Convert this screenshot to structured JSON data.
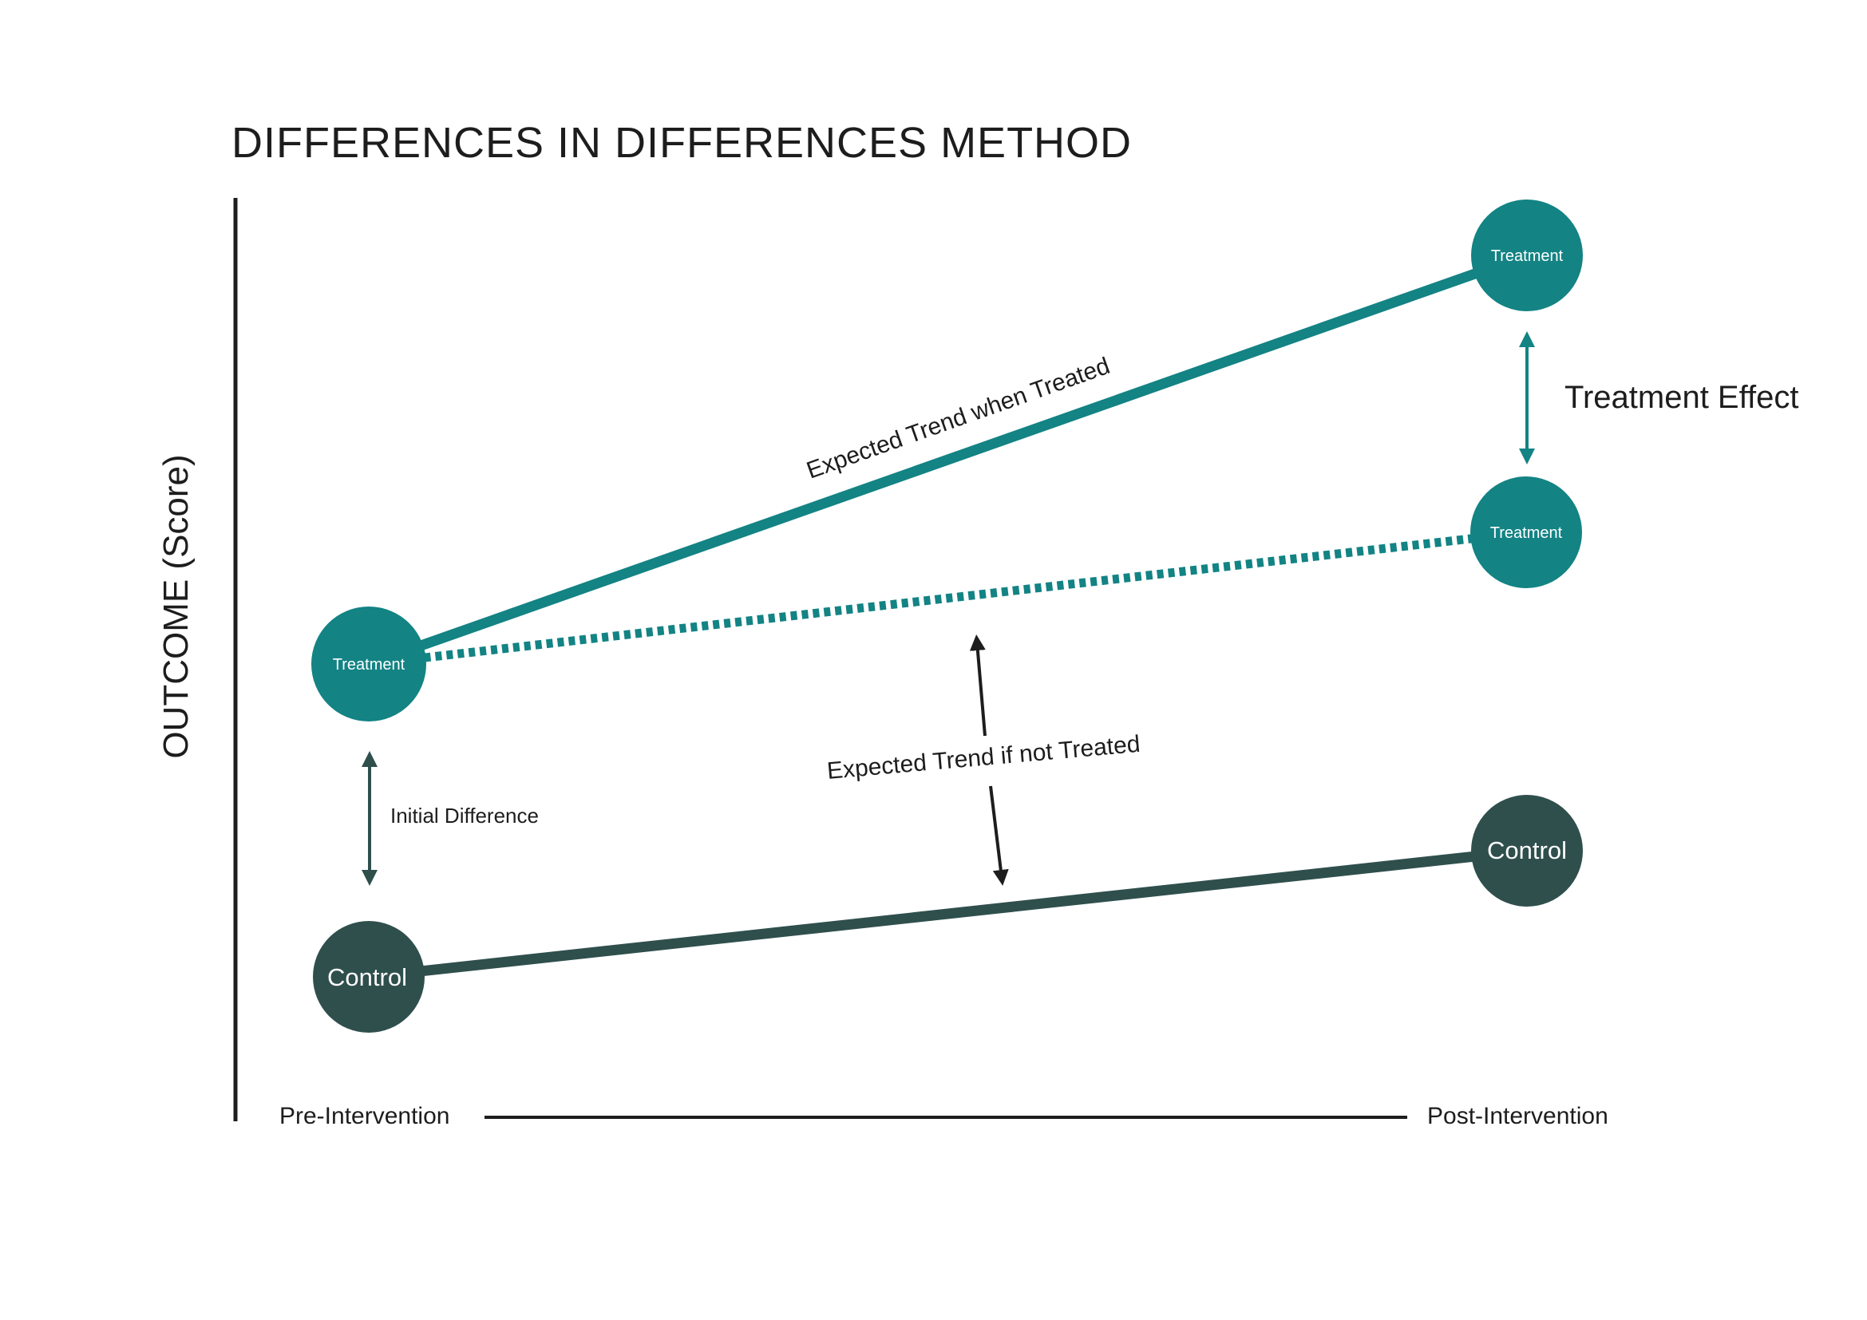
{
  "title": "DIFFERENCES IN DIFFERENCES METHOD",
  "y_axis_label": "OUTCOME (Score)",
  "x_axis": {
    "start_label": "Pre-Intervention",
    "end_label": "Post-Intervention"
  },
  "nodes": {
    "treatment_pre": "Treatment",
    "treatment_post_actual": "Treatment",
    "treatment_post_counterfactual": "Treatment",
    "control_pre": "Control",
    "control_post": "Control"
  },
  "annotations": {
    "expected_trend_treated": "Expected Trend when Treated",
    "expected_trend_not_treated": "Expected Trend if not Treated",
    "initial_difference": "Initial Difference",
    "treatment_effect": "Treatment Effect"
  },
  "colors": {
    "treatment": "#138384",
    "control": "#2f4f4d",
    "text": "#1d1d1d"
  }
}
